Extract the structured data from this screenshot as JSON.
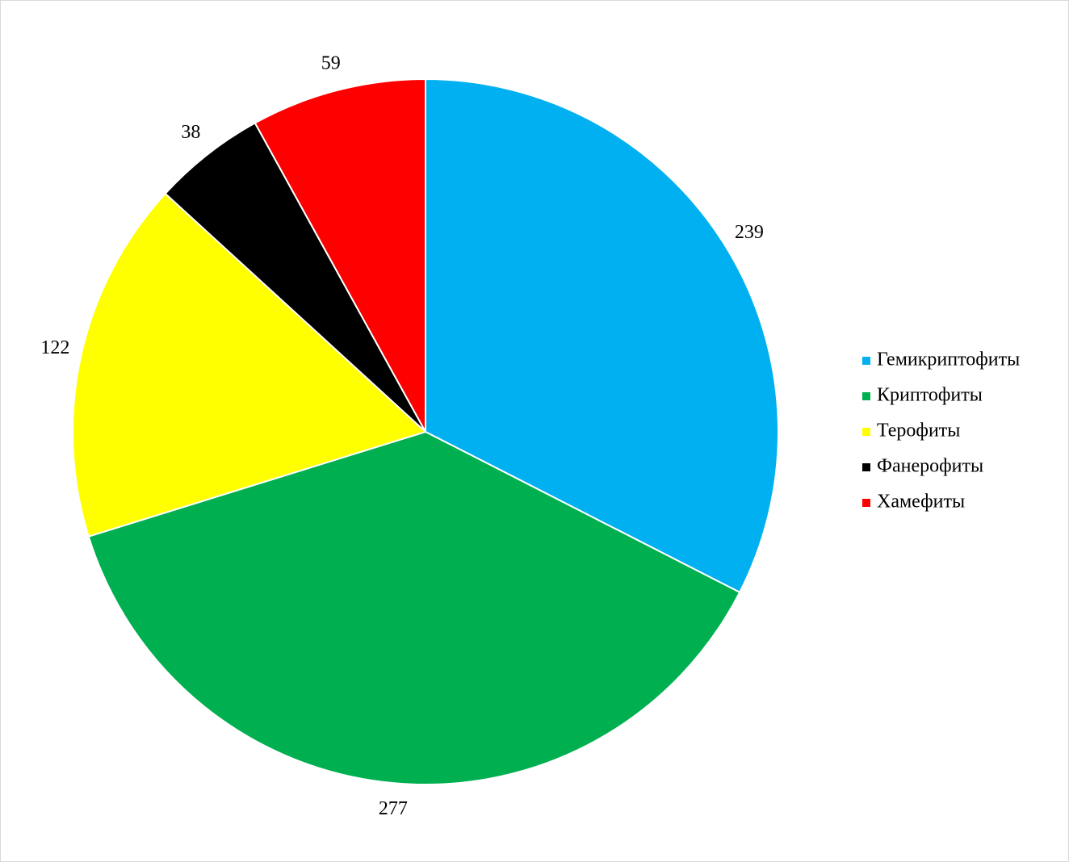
{
  "chart_data": {
    "type": "pie",
    "categories": [
      "Гемикриптофиты",
      "Криптофиты",
      "Терофиты",
      "Фанерофиты",
      "Хамефиты"
    ],
    "values": [
      239,
      277,
      122,
      38,
      59
    ],
    "colors": [
      "#00b0f0",
      "#00b050",
      "#ffff00",
      "#000000",
      "#ff0000"
    ],
    "legend": "right"
  }
}
